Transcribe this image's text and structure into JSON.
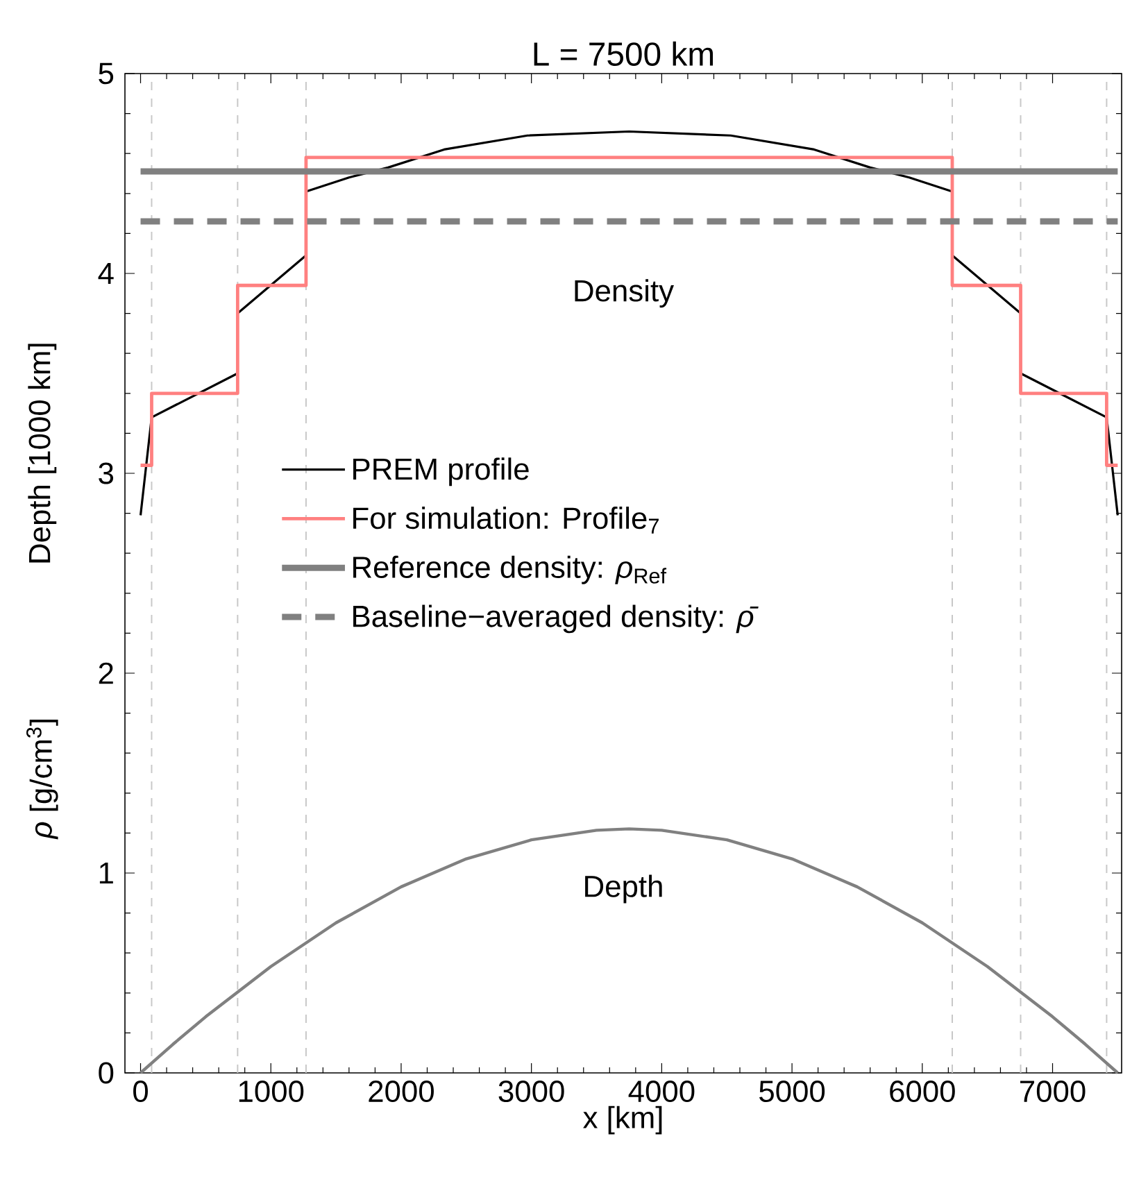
{
  "chart_data": {
    "type": "line",
    "title": "L = 7500 km",
    "xlabel": "x [km]",
    "ylabel": "Depth [1000 km]",
    "annotations": [
      "*ρ* [g/cm$^{3}$]",
      "Density",
      "Depth"
    ],
    "series": [
      {
        "name": "PREM profile",
        "color": "#000000",
        "x": [
          0,
          85,
          745,
          745,
          1270,
          1270,
          1600,
          1900,
          2330,
          2970,
          3750,
          4530,
          5170,
          5600,
          5900,
          6230,
          6230,
          6755,
          6755,
          7415,
          7500
        ],
        "values": [
          2.79,
          3.28,
          3.5,
          3.8,
          4.09,
          4.41,
          4.48,
          4.53,
          4.62,
          4.69,
          4.71,
          4.69,
          4.62,
          4.53,
          4.48,
          4.41,
          4.09,
          3.8,
          3.5,
          3.28,
          2.79
        ]
      },
      {
        "name": "For simulation: Profile$_{7}$",
        "color": "#ff8080",
        "x": [
          0,
          85,
          85,
          745,
          745,
          1270,
          1270,
          6230,
          6230,
          6755,
          6755,
          7415,
          7415,
          7500
        ],
        "values": [
          3.04,
          3.04,
          3.4,
          3.4,
          3.94,
          3.94,
          4.58,
          4.58,
          3.94,
          3.94,
          3.4,
          3.4,
          3.04,
          3.04
        ]
      },
      {
        "name": "Reference density: *ρ*$_{Ref}$",
        "color": "#808080",
        "x": [
          0,
          7500
        ],
        "values": [
          4.51,
          4.51
        ]
      },
      {
        "name": "Baseline−averaged density: *ρ̄*",
        "color": "#808080",
        "line_style": "dashed",
        "x": [
          0,
          7500
        ],
        "values": [
          4.26,
          4.26
        ]
      },
      {
        "color": "#808080",
        "x": [
          0,
          250,
          500,
          1000,
          1500,
          2000,
          2500,
          3000,
          3500,
          3750,
          4000,
          4500,
          5000,
          5500,
          6000,
          6500,
          7000,
          7250,
          7500
        ],
        "values": [
          0,
          0.144,
          0.281,
          0.532,
          0.751,
          0.931,
          1.071,
          1.166,
          1.214,
          1.221,
          1.214,
          1.166,
          1.071,
          0.931,
          0.751,
          0.532,
          0.281,
          0.144,
          0
        ]
      }
    ],
    "ref_lines": [
      {
        "axis": "x",
        "value": 85,
        "color": "#c8c8c8",
        "line_style": "dashed"
      },
      {
        "axis": "x",
        "value": 745,
        "color": "#c8c8c8",
        "line_style": "dashed"
      },
      {
        "axis": "x",
        "value": 1270,
        "color": "#c8c8c8",
        "line_style": "dashed"
      },
      {
        "axis": "x",
        "value": 6230,
        "color": "#c8c8c8",
        "line_style": "dashed"
      },
      {
        "axis": "x",
        "value": 6755,
        "color": "#c8c8c8",
        "line_style": "dashed"
      },
      {
        "axis": "x",
        "value": 7415,
        "color": "#c8c8c8",
        "line_style": "dashed"
      }
    ],
    "xlim": [
      -120,
      7530
    ],
    "ylim": [
      0,
      5
    ],
    "xticks": [
      0,
      1000,
      2000,
      3000,
      4000,
      5000,
      6000,
      7000
    ],
    "yticks": [
      0,
      1,
      2,
      3,
      4,
      5
    ],
    "grid": false,
    "legend": "left",
    "marker": "none",
    "line_style": "solid"
  }
}
